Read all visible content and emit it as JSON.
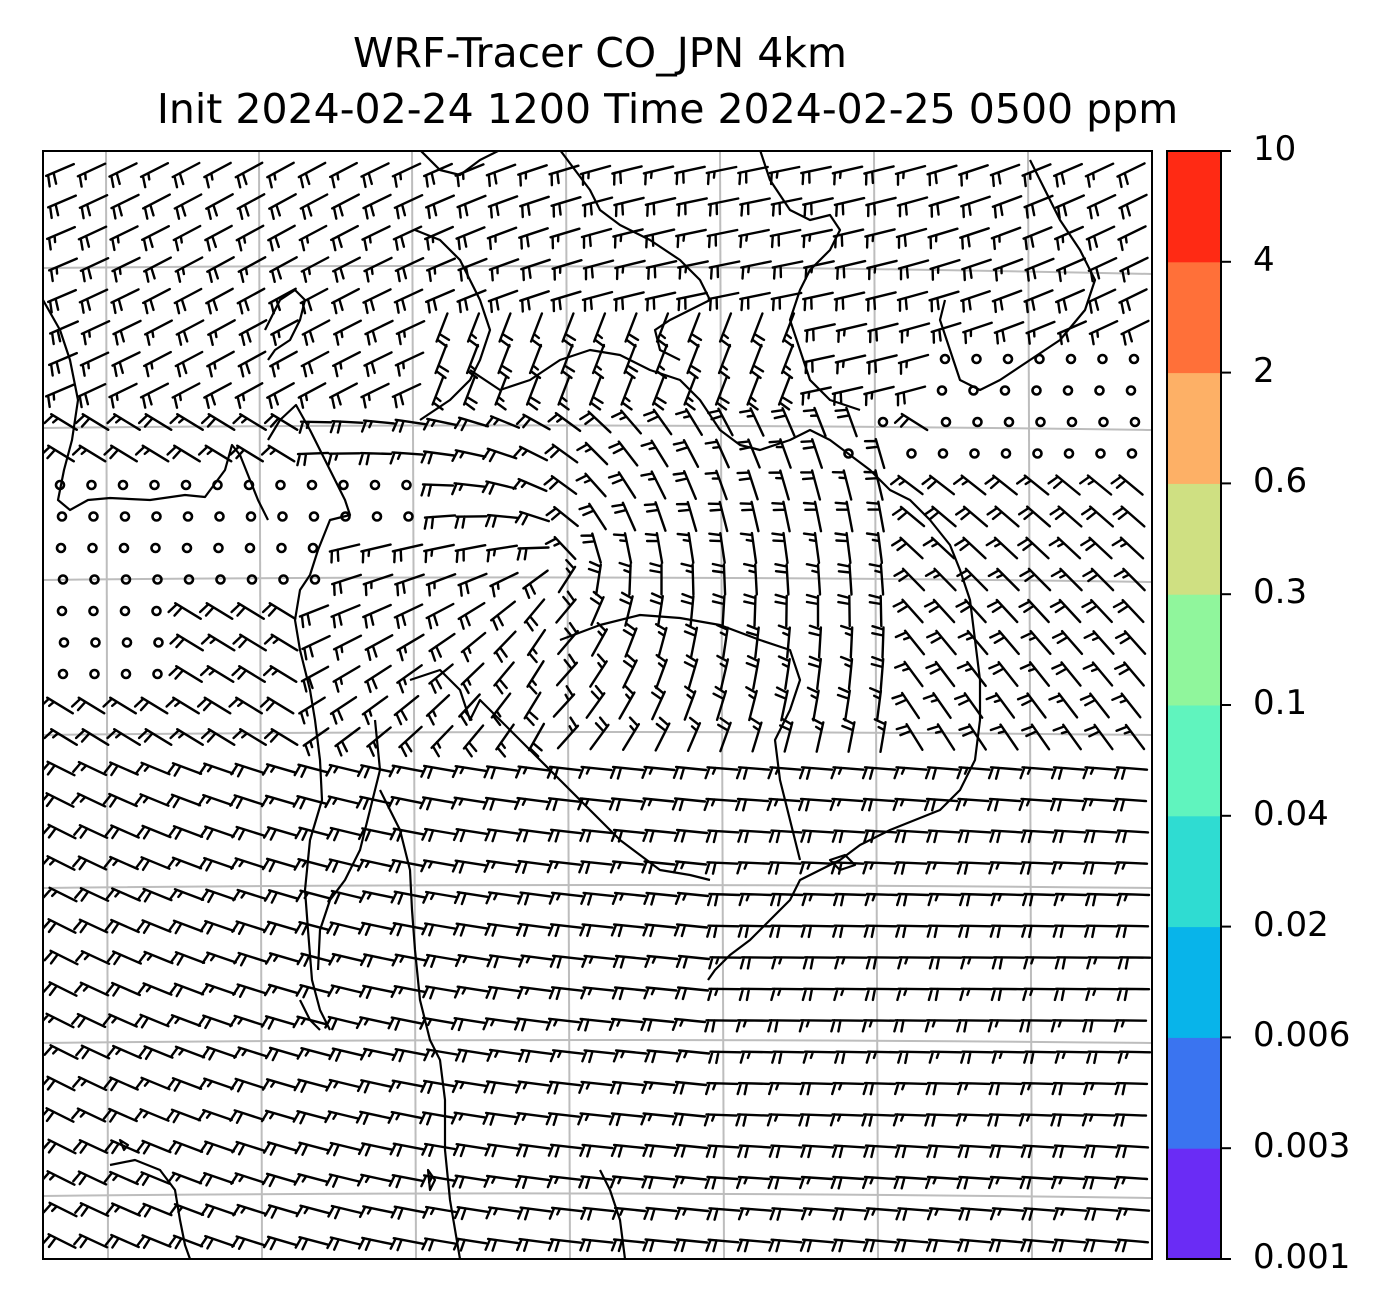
{
  "title": {
    "line1": "WRF-Tracer CO_JPN 4km",
    "line2": "Init 2024-02-24 1200 Time 2024-02-25 0500 ppm"
  },
  "colorbar": {
    "levels": [
      "0.001",
      "0.003",
      "0.006",
      "0.02",
      "0.04",
      "0.1",
      "0.3",
      "0.6",
      "2",
      "4",
      "10"
    ],
    "colors": [
      "#6a2cf5",
      "#3a74f0",
      "#08b4ea",
      "#2fdcd2",
      "#60f4be",
      "#90f69c",
      "#cfe082",
      "#fdb066",
      "#ff7039",
      "#ff2a14"
    ]
  },
  "map": {
    "type": "wind-barb field over coastline map",
    "gridlines": true
  }
}
